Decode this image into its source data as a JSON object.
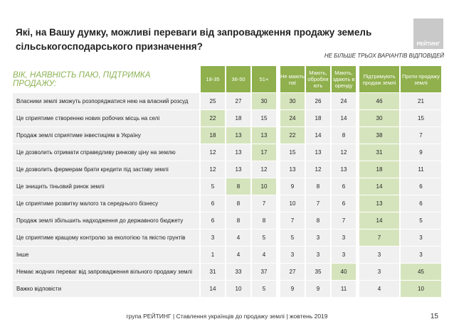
{
  "title": "Які, на Вашу думку, можливі переваги від запровадження продажу земель сільськогосподарського призначення?",
  "logo_text": "РЕЙТИНГ",
  "note": "НЕ БІЛЬШЕ ТРЬОХ ВАРІАНТІВ ВІДПОВІДЕЙ",
  "group_label": "ВІК, НАЯВНІСТЬ ПАЮ, ПІДТРИМКА ПРОДАЖУ:",
  "colors": {
    "header_green": "#8fb04d",
    "highlight": "#d6e4bd",
    "cell_bg": "#f0f0f0",
    "label_green": "#8db255"
  },
  "columns": [
    "18-35",
    "36-50",
    "51+",
    "Не мають паї",
    "Мають, обробля ють",
    "Мають, здають в оренду",
    "Підтримують продаж землі",
    "Проти продажу землі"
  ],
  "rows": [
    {
      "label": "Власники землі зможуть розпоряджатися нею на власний розсуд",
      "values": [
        25,
        27,
        30,
        30,
        26,
        24,
        46,
        21
      ],
      "highlight": [
        2,
        3,
        6
      ]
    },
    {
      "label": "Це сприятиме створенню нових робочих місць на селі",
      "values": [
        22,
        18,
        15,
        24,
        18,
        14,
        30,
        15
      ],
      "highlight": [
        0,
        3,
        6
      ]
    },
    {
      "label": "Продаж землі сприятиме інвестиціям в Україну",
      "values": [
        18,
        13,
        13,
        22,
        14,
        8,
        38,
        7
      ],
      "highlight": [
        0,
        1,
        2,
        3,
        6
      ]
    },
    {
      "label": "Це дозволить отримати справедливу ринкову ціну на землю",
      "values": [
        12,
        13,
        17,
        15,
        13,
        12,
        31,
        9
      ],
      "highlight": [
        2,
        6
      ]
    },
    {
      "label": "Це дозволить фермерам брати кредити під заставу землі",
      "values": [
        12,
        13,
        12,
        13,
        12,
        13,
        18,
        11
      ],
      "highlight": [
        6
      ]
    },
    {
      "label": "Це знищить тіньовий ринок землі",
      "values": [
        5,
        8,
        10,
        9,
        8,
        6,
        14,
        6
      ],
      "highlight": [
        1,
        2,
        6
      ]
    },
    {
      "label": "Це сприятиме розвитку малого та середнього бізнесу",
      "values": [
        6,
        8,
        7,
        10,
        7,
        6,
        13,
        6
      ],
      "highlight": [
        6
      ]
    },
    {
      "label": "Продаж землі збільшить надходження до державного бюджету",
      "values": [
        6,
        8,
        8,
        7,
        8,
        7,
        14,
        5
      ],
      "highlight": [
        6
      ]
    },
    {
      "label": "Це сприятиме кращому контролю за екологією та якістю грунтів",
      "values": [
        3,
        4,
        5,
        5,
        3,
        3,
        7,
        3
      ],
      "highlight": [
        6
      ]
    },
    {
      "label": "Інше",
      "values": [
        1,
        4,
        4,
        3,
        3,
        3,
        3,
        3
      ],
      "highlight": []
    },
    {
      "label": "Немає жодних переваг від запровадження вільного продажу землі",
      "values": [
        31,
        33,
        37,
        27,
        35,
        40,
        3,
        45
      ],
      "highlight": [
        5,
        7
      ]
    },
    {
      "label": "Важко відповісти",
      "values": [
        14,
        10,
        5,
        9,
        9,
        11,
        4,
        10
      ],
      "highlight": [
        7
      ]
    }
  ],
  "footer": "група РЕЙТИНГ | Ставлення українців до продажу землі | жовтень 2019",
  "page_number": "15"
}
